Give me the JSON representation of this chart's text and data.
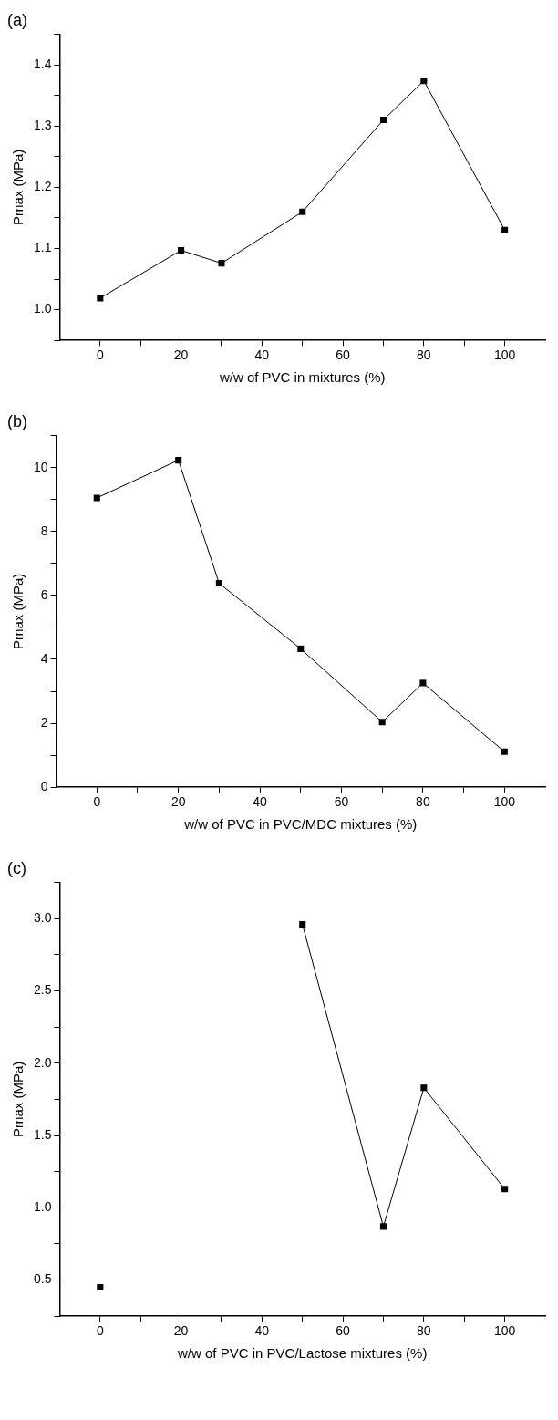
{
  "chart_data": [
    {
      "type": "line",
      "title": "(a)",
      "xlabel": "w/w of PVC in mixtures (%)",
      "ylabel": "Pmax (MPa)",
      "x": [
        0,
        20,
        30,
        50,
        70,
        80,
        100
      ],
      "series": [
        {
          "color": "#000000",
          "values": [
            1.019,
            1.097,
            1.076,
            1.16,
            1.31,
            1.374,
            1.13
          ]
        }
      ],
      "xlim": [
        -10,
        110
      ],
      "xticks": [
        0,
        {
          "value": 10,
          "label": null
        },
        20,
        {
          "value": 30,
          "label": null
        },
        40,
        {
          "value": 50,
          "label": null
        },
        60,
        {
          "value": 70,
          "label": null
        },
        80,
        {
          "value": 90,
          "label": null
        },
        100
      ],
      "ylim": [
        0.95,
        1.45
      ],
      "yticks": [
        {
          "value": 0.95,
          "label": null
        },
        {
          "value": 1.0,
          "label": "1.0"
        },
        {
          "value": 1.05,
          "label": null
        },
        1.1,
        {
          "value": 1.15,
          "label": null
        },
        1.2,
        {
          "value": 1.25,
          "label": null
        },
        1.3,
        {
          "value": 1.35,
          "label": null
        },
        1.4,
        {
          "value": 1.45,
          "label": null
        }
      ],
      "grid": false,
      "legend": false,
      "marker": "square",
      "line_style": "solid"
    },
    {
      "type": "line",
      "title": "(b)",
      "xlabel": "w/w of PVC in PVC/MDC mixtures (%)",
      "ylabel": "Pmax (MPa)",
      "x": [
        0,
        20,
        30,
        50,
        70,
        80,
        100
      ],
      "series": [
        {
          "color": "#000000",
          "values": [
            9.05,
            10.23,
            6.38,
            4.33,
            2.04,
            3.26,
            1.11
          ]
        }
      ],
      "xlim": [
        -10,
        110
      ],
      "xticks": [
        0,
        {
          "value": 10,
          "label": null
        },
        20,
        {
          "value": 30,
          "label": null
        },
        40,
        {
          "value": 50,
          "label": null
        },
        60,
        {
          "value": 70,
          "label": null
        },
        80,
        {
          "value": 90,
          "label": null
        },
        100
      ],
      "ylim": [
        0,
        11
      ],
      "yticks": [
        0,
        {
          "value": 1,
          "label": null
        },
        2,
        {
          "value": 3,
          "label": null
        },
        4,
        {
          "value": 5,
          "label": null
        },
        6,
        {
          "value": 7,
          "label": null
        },
        8,
        {
          "value": 9,
          "label": null
        },
        10,
        {
          "value": 11,
          "label": null
        }
      ],
      "grid": false,
      "legend": false,
      "marker": "square",
      "line_style": "solid"
    },
    {
      "type": "line",
      "title": "(c)",
      "xlabel": "w/w of PVC in PVC/Lactose mixtures (%)",
      "ylabel": "Pmax (MPa)",
      "x": [
        0,
        20,
        30,
        50,
        70,
        80,
        100
      ],
      "series": [
        {
          "color": "#000000",
          "values": [
            0.45,
            null,
            null,
            2.96,
            0.87,
            1.83,
            1.13
          ]
        }
      ],
      "xlim": [
        -10,
        110
      ],
      "xticks": [
        0,
        {
          "value": 10,
          "label": null
        },
        20,
        {
          "value": 30,
          "label": null
        },
        40,
        {
          "value": 50,
          "label": null
        },
        60,
        {
          "value": 70,
          "label": null
        },
        80,
        {
          "value": 90,
          "label": null
        },
        100
      ],
      "ylim": [
        0.25,
        3.25
      ],
      "yticks": [
        {
          "value": 0.25,
          "label": null
        },
        0.5,
        {
          "value": 0.75,
          "label": null
        },
        {
          "value": 1.0,
          "label": "1.0"
        },
        {
          "value": 1.25,
          "label": null
        },
        1.5,
        {
          "value": 1.75,
          "label": null
        },
        {
          "value": 2.0,
          "label": "2.0"
        },
        {
          "value": 2.25,
          "label": null
        },
        2.5,
        {
          "value": 2.75,
          "label": null
        },
        {
          "value": 3.0,
          "label": "3.0"
        },
        {
          "value": 3.25,
          "label": null
        }
      ],
      "grid": false,
      "legend": false,
      "marker": "square",
      "line_style": "solid"
    }
  ]
}
